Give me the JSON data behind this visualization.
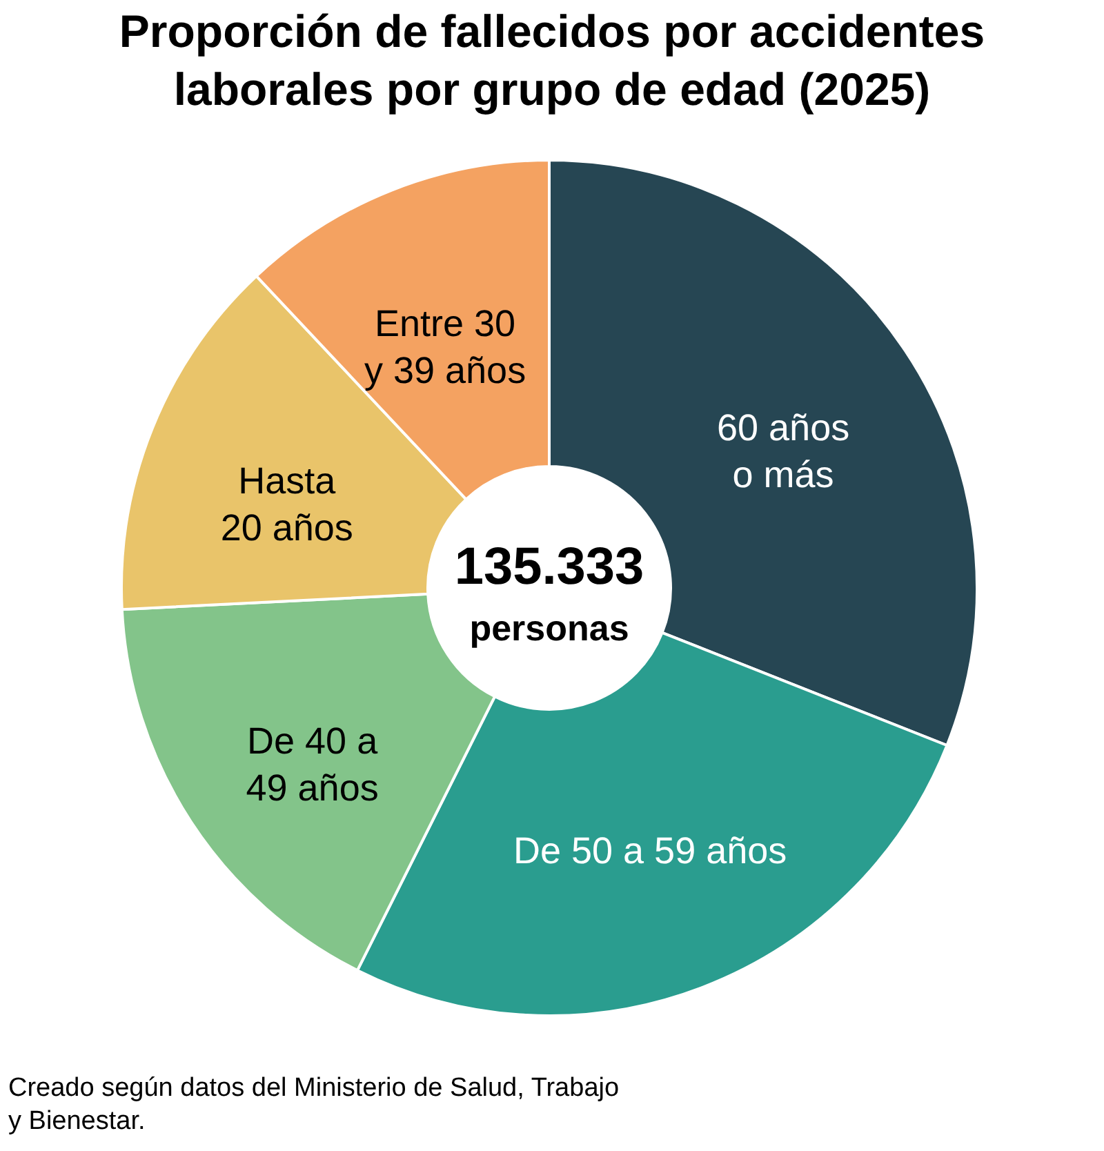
{
  "chart_data": {
    "type": "donut",
    "title": "Proporción de fallecidos por accidentes laborales por grupo de edad (2025)",
    "categories": [
      "60 años o más",
      "De 50 a 59 años",
      "De 40 a 49 años",
      "Hasta 20 años",
      "Entre 30 y 39 años"
    ],
    "values": [
      31.0,
      26.4,
      16.8,
      13.8,
      12.0
    ],
    "colors": [
      "#264653",
      "#2a9d8f",
      "#83c48a",
      "#e9c46a",
      "#f4a261"
    ],
    "annotations": [
      "135.333 personas",
      "Creado según datos del Ministerio de Salud, Trabajo y Bienestar."
    ]
  }
}
